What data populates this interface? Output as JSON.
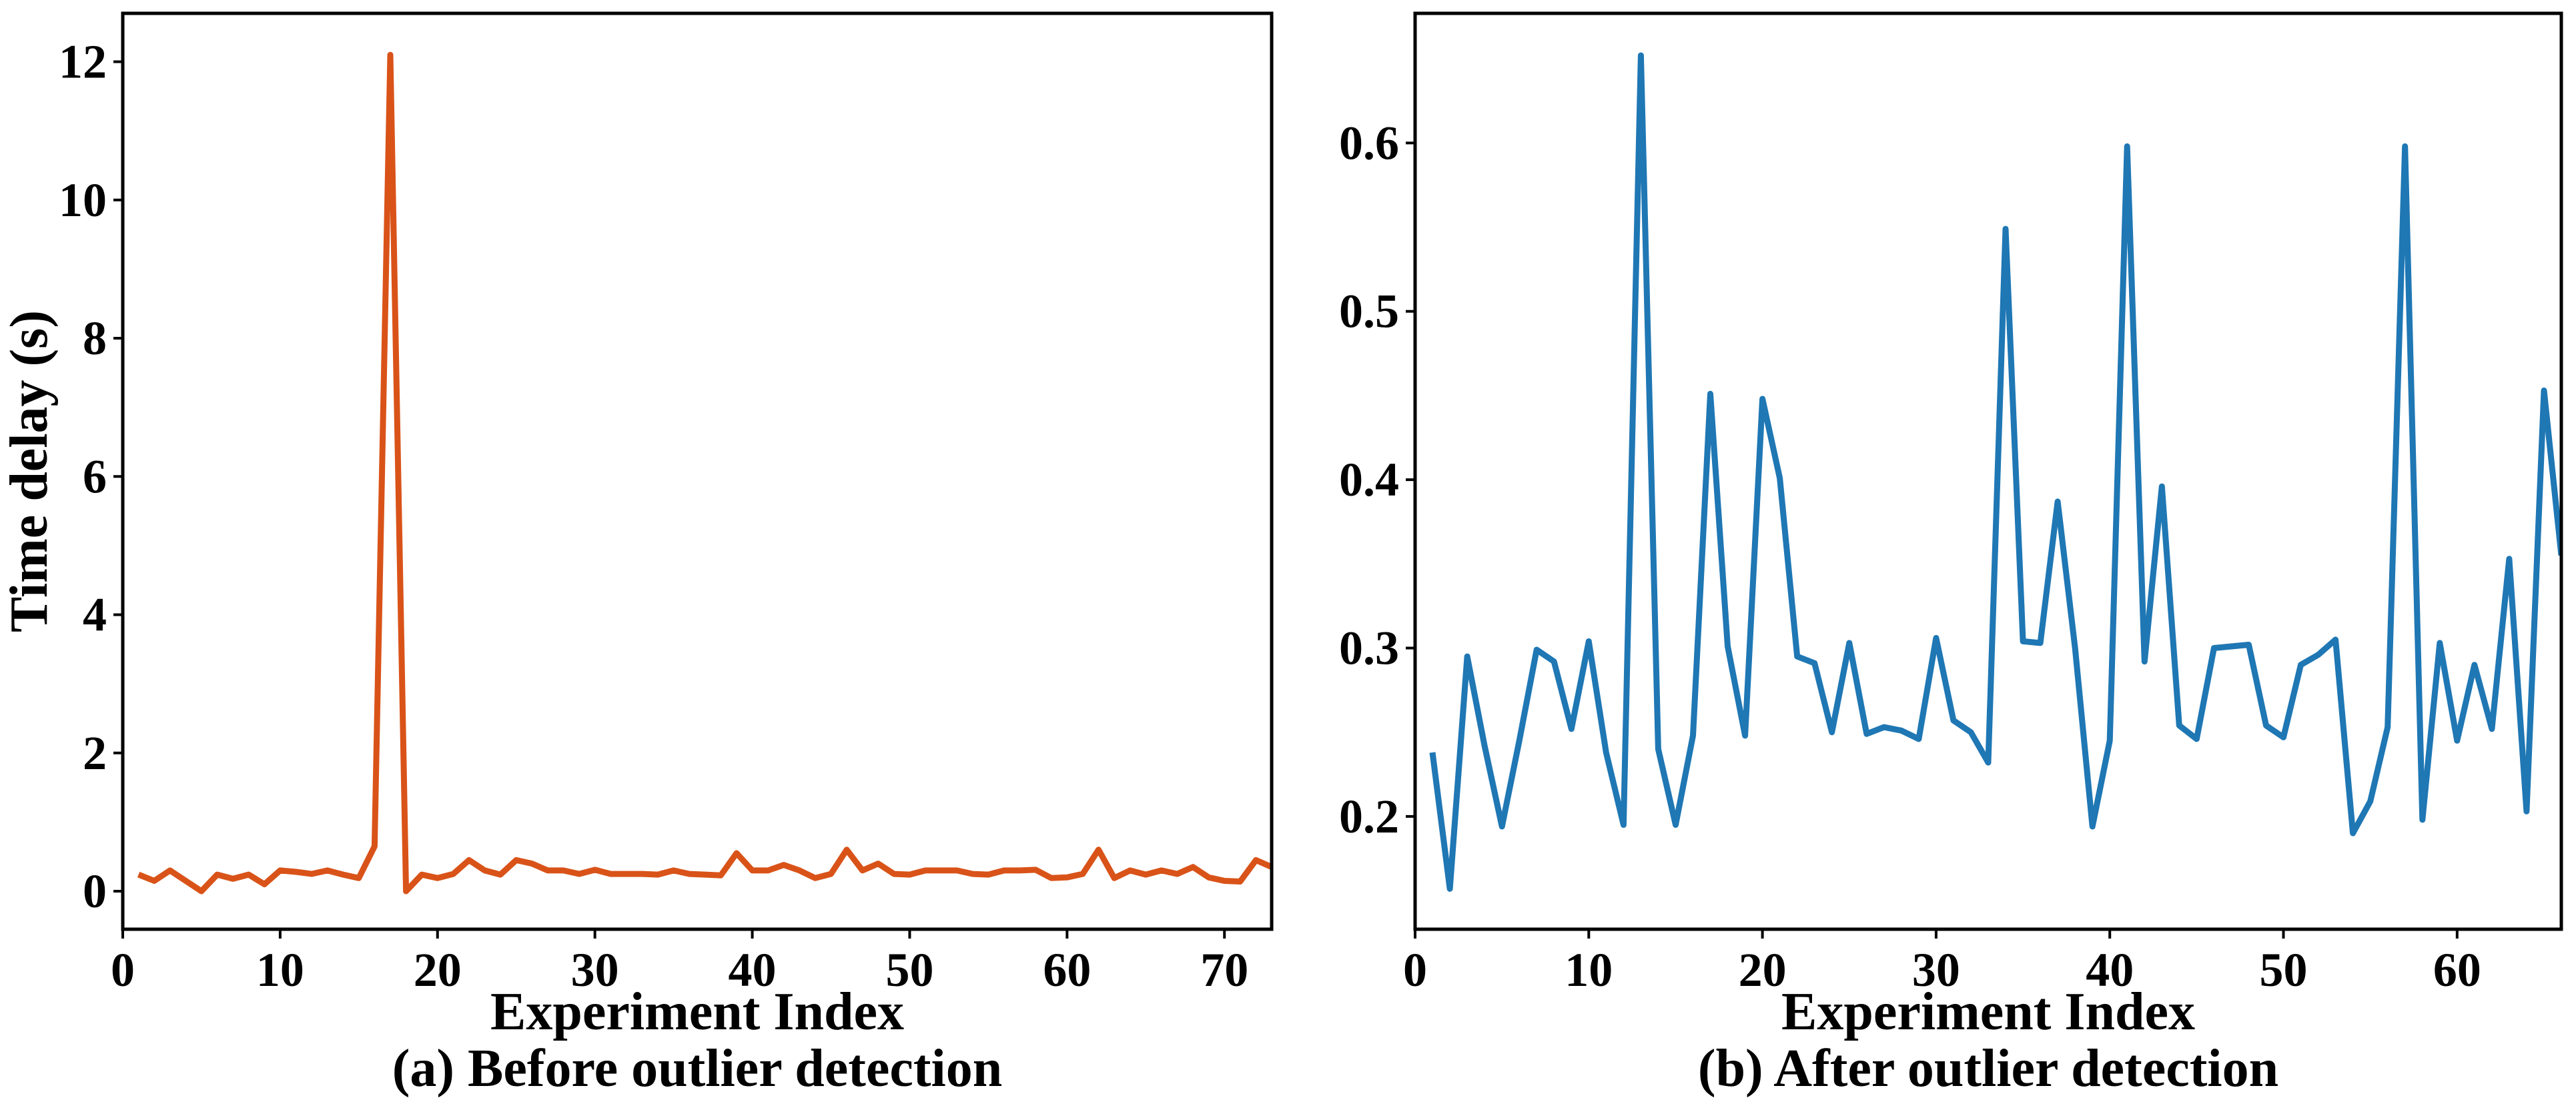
{
  "chart_data": [
    {
      "type": "line",
      "caption": "(a) Before outlier detection",
      "xlabel": "Experiment Index",
      "ylabel": "Time delay (s)",
      "xlim": [
        0,
        73
      ],
      "ylim": [
        -0.55,
        12.7
      ],
      "xticks": [
        0,
        10,
        20,
        30,
        40,
        50,
        60,
        70
      ],
      "yticks": [
        0,
        2,
        4,
        6,
        8,
        10,
        12
      ],
      "color": "#d95319",
      "grid": false,
      "series": [
        {
          "x": [
            1,
            2,
            3,
            4,
            5,
            6,
            7,
            8,
            9,
            10,
            11,
            12,
            13,
            14,
            15,
            16,
            17,
            18,
            19,
            20,
            21,
            22,
            23,
            24,
            25,
            26,
            27,
            28,
            29,
            30,
            31,
            32,
            33,
            34,
            35,
            36,
            37,
            38,
            39,
            40,
            41,
            42,
            43,
            44,
            45,
            46,
            47,
            48,
            49,
            50,
            51,
            52,
            53,
            54,
            55,
            56,
            57,
            58,
            59,
            60,
            61,
            62,
            63,
            64,
            65,
            66,
            67,
            68,
            69,
            70,
            71,
            72,
            73
          ],
          "values": [
            0.24,
            0.15,
            0.3,
            0.15,
            0.0,
            0.24,
            0.18,
            0.24,
            0.1,
            0.3,
            0.28,
            0.25,
            0.3,
            0.24,
            0.19,
            0.65,
            12.1,
            0.0,
            0.24,
            0.19,
            0.25,
            0.45,
            0.3,
            0.24,
            0.45,
            0.4,
            0.3,
            0.3,
            0.25,
            0.31,
            0.25,
            0.25,
            0.25,
            0.24,
            0.3,
            0.25,
            0.24,
            0.23,
            0.55,
            0.3,
            0.3,
            0.38,
            0.3,
            0.19,
            0.25,
            0.6,
            0.3,
            0.4,
            0.25,
            0.24,
            0.3,
            0.3,
            0.3,
            0.25,
            0.24,
            0.3,
            0.3,
            0.31,
            0.19,
            0.2,
            0.25,
            0.6,
            0.19,
            0.3,
            0.24,
            0.3,
            0.25,
            0.35,
            0.2,
            0.15,
            0.14,
            0.45,
            0.35
          ]
        }
      ]
    },
    {
      "type": "line",
      "caption": "(b) After outlier detection",
      "xlabel": "Experiment Index",
      "ylabel": "",
      "xlim": [
        0,
        66
      ],
      "ylim": [
        0.133,
        0.677
      ],
      "xticks": [
        0,
        10,
        20,
        30,
        40,
        50,
        60
      ],
      "yticks": [
        0.2,
        0.3,
        0.4,
        0.5,
        0.6
      ],
      "color": "#1f77b4",
      "grid": false,
      "series": [
        {
          "x": [
            1,
            2,
            3,
            4,
            5,
            6,
            7,
            8,
            9,
            10,
            11,
            12,
            13,
            14,
            15,
            16,
            17,
            18,
            19,
            20,
            21,
            22,
            23,
            24,
            25,
            26,
            27,
            28,
            29,
            30,
            31,
            32,
            33,
            34,
            35,
            36,
            37,
            38,
            39,
            40,
            41,
            42,
            43,
            44,
            45,
            46,
            47,
            48,
            49,
            50,
            51,
            52,
            53,
            54,
            55,
            56,
            57,
            58,
            59,
            60,
            61,
            62,
            63,
            64,
            65,
            66
          ],
          "values": [
            0.238,
            0.157,
            0.295,
            0.242,
            0.194,
            0.245,
            0.299,
            0.292,
            0.252,
            0.304,
            0.238,
            0.195,
            0.652,
            0.24,
            0.195,
            0.248,
            0.451,
            0.301,
            0.248,
            0.448,
            0.401,
            0.295,
            0.291,
            0.25,
            0.303,
            0.249,
            0.253,
            0.251,
            0.246,
            0.306,
            0.257,
            0.25,
            0.232,
            0.549,
            0.304,
            0.303,
            0.387,
            0.3,
            0.194,
            0.245,
            0.598,
            0.292,
            0.396,
            0.254,
            0.246,
            0.3,
            0.301,
            0.302,
            0.254,
            0.247,
            0.29,
            0.296,
            0.305,
            0.19,
            0.209,
            0.253,
            0.598,
            0.198,
            0.303,
            0.245,
            0.29,
            0.252,
            0.353,
            0.203,
            0.453,
            0.355
          ]
        }
      ]
    }
  ]
}
